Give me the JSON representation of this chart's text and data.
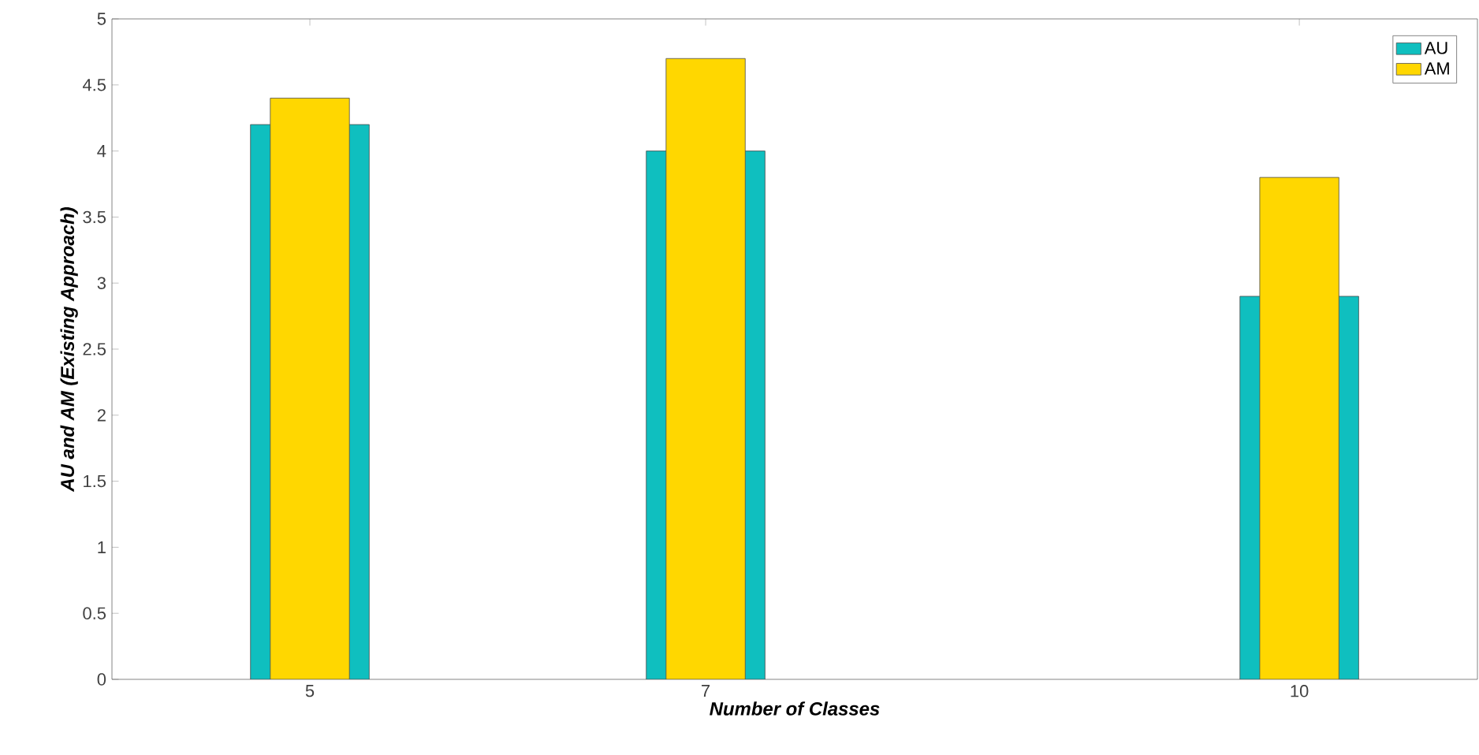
{
  "chart_data": {
    "type": "bar",
    "xlabel": "Number of Classes",
    "ylabel": "AU and AM (Existing Approach)",
    "x": [
      5,
      7,
      10
    ],
    "series": [
      {
        "name": "AU",
        "color": "#0fbfbf",
        "values": [
          4.2,
          4.0,
          2.9
        ]
      },
      {
        "name": "AM",
        "color": "#ffd700",
        "values": [
          4.4,
          4.7,
          3.8
        ]
      }
    ],
    "xlim": [
      4,
      10.9
    ],
    "xticks": [
      5,
      7,
      10
    ],
    "ylim": [
      0,
      5
    ],
    "yticks": [
      0,
      0.5,
      1,
      1.5,
      2,
      2.5,
      3,
      3.5,
      4,
      4.5,
      5
    ],
    "legend": "top right",
    "grid": false
  }
}
